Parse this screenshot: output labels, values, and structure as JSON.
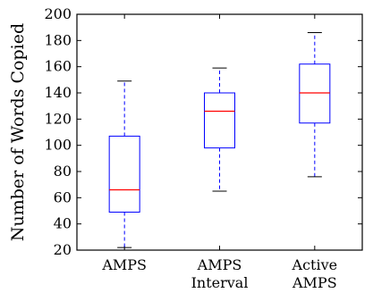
{
  "chart_data": {
    "type": "box",
    "ylabel": "Number of Words Copied",
    "ylim": [
      20,
      200
    ],
    "yticks": [
      20,
      40,
      60,
      80,
      100,
      120,
      140,
      160,
      180,
      200
    ],
    "grid": false,
    "categories": [
      [
        "AMPS"
      ],
      [
        "AMPS",
        "Interval"
      ],
      [
        "Active",
        "AMPS"
      ]
    ],
    "boxes": [
      {
        "whisker_low": 22,
        "q1": 49,
        "median": 66,
        "q3": 107,
        "whisker_high": 149
      },
      {
        "whisker_low": 65,
        "q1": 98,
        "median": 126,
        "q3": 140,
        "whisker_high": 159
      },
      {
        "whisker_low": 76,
        "q1": 117,
        "median": 140,
        "q3": 162,
        "whisker_high": 186
      }
    ],
    "colors": {
      "box": "#0000ff",
      "median": "#ff0000",
      "axis": "#000000"
    }
  }
}
